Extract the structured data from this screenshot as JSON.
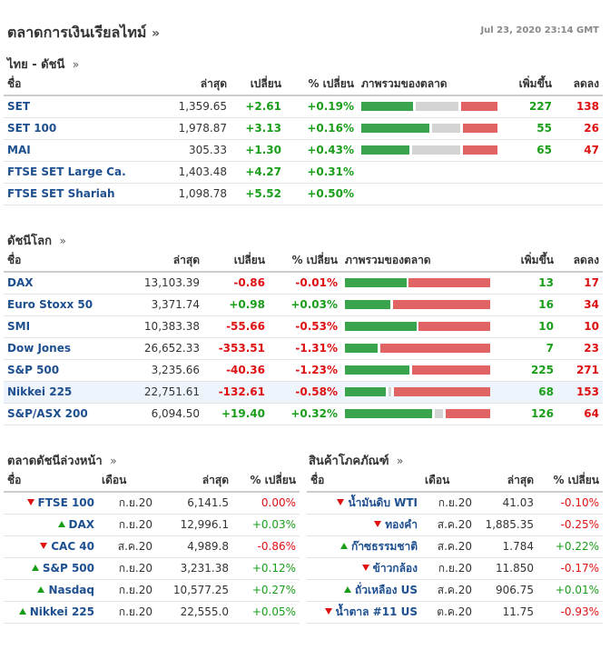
{
  "header": {
    "title": "ตลาดการเงินเรียลไทม์",
    "arrow": "»",
    "timestamp": "Jul 23, 2020 23:14 GMT"
  },
  "thai": {
    "title": "ไทย - ดัชนี",
    "arrow": "»",
    "headers": [
      "ชื่อ",
      "ล่าสุด",
      "เปลี่ยน",
      "% เปลี่ยน",
      "ภาพรวมของตลาด",
      "เพิ่มขึ้น",
      "ลดลง"
    ],
    "rows": [
      {
        "name": "SET",
        "last": "1,359.65",
        "chg": "+2.61",
        "pct": "+0.19%",
        "up": "227",
        "down": "138",
        "bar": [
          0.39,
          0.32,
          0.27
        ]
      },
      {
        "name": "SET 100",
        "last": "1,978.87",
        "chg": "+3.13",
        "pct": "+0.16%",
        "up": "55",
        "down": "26",
        "bar": [
          0.51,
          0.21,
          0.26
        ]
      },
      {
        "name": "MAI",
        "last": "305.33",
        "chg": "+1.30",
        "pct": "+0.43%",
        "up": "65",
        "down": "47",
        "bar": [
          0.36,
          0.36,
          0.26
        ]
      },
      {
        "name": "FTSE SET Large Ca.",
        "last": "1,403.48",
        "chg": "+4.27",
        "pct": "+0.31%",
        "up": "",
        "down": "",
        "bar": null
      },
      {
        "name": "FTSE SET Shariah",
        "last": "1,098.78",
        "chg": "+5.52",
        "pct": "+0.50%",
        "up": "",
        "down": "",
        "bar": null
      }
    ]
  },
  "world": {
    "title": "ดัชนีโลก",
    "arrow": "»",
    "headers": [
      "ชื่อ",
      "ล่าสุด",
      "เปลี่ยน",
      "% เปลี่ยน",
      "ภาพรวมของตลาด",
      "เพิ่มขึ้น",
      "ลดลง"
    ],
    "rows": [
      {
        "name": "DAX",
        "last": "13,103.39",
        "chg": "-0.86",
        "pct": "-0.01%",
        "up": "13",
        "down": "17",
        "bar": [
          0.43,
          0.0,
          0.57
        ]
      },
      {
        "name": "Euro Stoxx 50",
        "last": "3,371.74",
        "chg": "+0.98",
        "pct": "+0.03%",
        "up": "16",
        "down": "34",
        "bar": [
          0.32,
          0.0,
          0.68
        ]
      },
      {
        "name": "SMI",
        "last": "10,383.38",
        "chg": "-55.66",
        "pct": "-0.53%",
        "up": "10",
        "down": "10",
        "bar": [
          0.5,
          0.0,
          0.5
        ]
      },
      {
        "name": "Dow Jones",
        "last": "26,652.33",
        "chg": "-353.51",
        "pct": "-1.31%",
        "up": "7",
        "down": "23",
        "bar": [
          0.23,
          0.0,
          0.77
        ]
      },
      {
        "name": "S&P 500",
        "last": "3,235.66",
        "chg": "-40.36",
        "pct": "-1.23%",
        "up": "225",
        "down": "271",
        "bar": [
          0.45,
          0.0,
          0.55
        ]
      },
      {
        "name": "Nikkei 225",
        "last": "22,751.61",
        "chg": "-132.61",
        "pct": "-0.58%",
        "up": "68",
        "down": "153",
        "bar": [
          0.29,
          0.02,
          0.69
        ],
        "highlight": true
      },
      {
        "name": "S&P/ASX 200",
        "last": "6,094.50",
        "chg": "+19.40",
        "pct": "+0.32%",
        "up": "126",
        "down": "64",
        "bar": [
          0.62,
          0.06,
          0.32
        ]
      }
    ]
  },
  "futures": {
    "title": "ตลาดดัชนีล่วงหน้า",
    "arrow": "»",
    "headers": [
      "ชื่อ",
      "เดือน",
      "ล่าสุด",
      "% เปลี่ยน"
    ],
    "rows": [
      {
        "dir": "down",
        "name": "FTSE 100",
        "month": "ก.ย.20",
        "last": "6,141.5",
        "pct": "0.00%"
      },
      {
        "dir": "up",
        "name": "DAX",
        "month": "ก.ย.20",
        "last": "12,996.1",
        "pct": "+0.03%"
      },
      {
        "dir": "down",
        "name": "CAC 40",
        "month": "ส.ค.20",
        "last": "4,989.8",
        "pct": "-0.86%"
      },
      {
        "dir": "up",
        "name": "S&P 500",
        "month": "ก.ย.20",
        "last": "3,231.38",
        "pct": "+0.12%"
      },
      {
        "dir": "up",
        "name": "Nasdaq",
        "month": "ก.ย.20",
        "last": "10,577.25",
        "pct": "+0.27%"
      },
      {
        "dir": "up",
        "name": "Nikkei 225",
        "month": "ก.ย.20",
        "last": "22,555.0",
        "pct": "+0.05%"
      }
    ]
  },
  "commodities": {
    "title": "สินค้าโภคภัณฑ์",
    "arrow": "»",
    "headers": [
      "ชื่อ",
      "เดือน",
      "ล่าสุด",
      "% เปลี่ยน"
    ],
    "rows": [
      {
        "dir": "down",
        "name": "น้ำมันดิบ WTI",
        "month": "ก.ย.20",
        "last": "41.03",
        "pct": "-0.10%"
      },
      {
        "dir": "down",
        "name": "ทองคำ",
        "month": "ส.ค.20",
        "last": "1,885.35",
        "pct": "-0.25%"
      },
      {
        "dir": "up",
        "name": "ก๊าซธรรมชาติ",
        "month": "ส.ค.20",
        "last": "1.784",
        "pct": "+0.22%"
      },
      {
        "dir": "down",
        "name": "ข้าวกล้อง",
        "month": "ก.ย.20",
        "last": "11.850",
        "pct": "-0.17%"
      },
      {
        "dir": "up",
        "name": "ถั่วเหลือง US",
        "month": "ส.ค.20",
        "last": "906.75",
        "pct": "+0.01%"
      },
      {
        "dir": "down",
        "name": "น้ำตาล #11 US",
        "month": "ต.ค.20",
        "last": "11.75",
        "pct": "-0.93%"
      }
    ]
  },
  "colors": {
    "link": "#1e4f8f",
    "positive": "#1a9e1a",
    "negative": "#dd1111",
    "bar_up": "#3aa34e",
    "bar_flat": "#d4d4d4",
    "bar_down": "#e06464"
  }
}
